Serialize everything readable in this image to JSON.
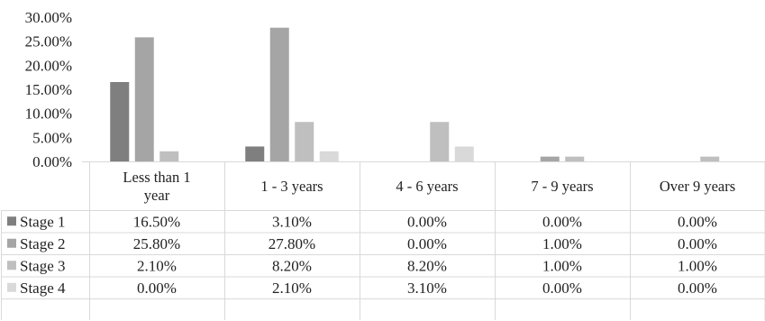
{
  "chart_data": {
    "type": "bar",
    "categories": [
      "Less than 1 year",
      "1 - 3 years",
      "4 - 6 years",
      "7 - 9 years",
      "Over 9 years"
    ],
    "category_lines": [
      [
        "Less than 1",
        "year"
      ],
      [
        "1 - 3 years"
      ],
      [
        "4 - 6 years"
      ],
      [
        "7 - 9 years"
      ],
      [
        "Over 9 years"
      ]
    ],
    "series": [
      {
        "name": "Stage 1",
        "values": [
          16.5,
          3.1,
          0.0,
          0.0,
          0.0
        ],
        "labels": [
          "16.50%",
          "3.10%",
          "0.00%",
          "0.00%",
          "0.00%"
        ],
        "color": "#7f7f7f"
      },
      {
        "name": "Stage 2",
        "values": [
          25.8,
          27.8,
          0.0,
          1.0,
          0.0
        ],
        "labels": [
          "25.80%",
          "27.80%",
          "0.00%",
          "1.00%",
          "0.00%"
        ],
        "color": "#a5a5a5"
      },
      {
        "name": "Stage 3",
        "values": [
          2.1,
          8.2,
          8.2,
          1.0,
          1.0
        ],
        "labels": [
          "2.10%",
          "8.20%",
          "8.20%",
          "1.00%",
          "1.00%"
        ],
        "color": "#bfbfbf"
      },
      {
        "name": "Stage 4",
        "values": [
          0.0,
          2.1,
          3.1,
          0.0,
          0.0
        ],
        "labels": [
          "0.00%",
          "2.10%",
          "3.10%",
          "0.00%",
          "0.00%"
        ],
        "color": "#d9d9d9"
      }
    ],
    "yticks": [
      "0.00%",
      "5.00%",
      "10.00%",
      "15.00%",
      "20.00%",
      "25.00%",
      "30.00%"
    ],
    "ylim": [
      0,
      30
    ],
    "ytick_step": 5,
    "legend": "data-table",
    "grid": false,
    "colors": {
      "axis": "#d9d9d9",
      "table_lines": "#d9d9d9",
      "text": "#222222"
    }
  }
}
